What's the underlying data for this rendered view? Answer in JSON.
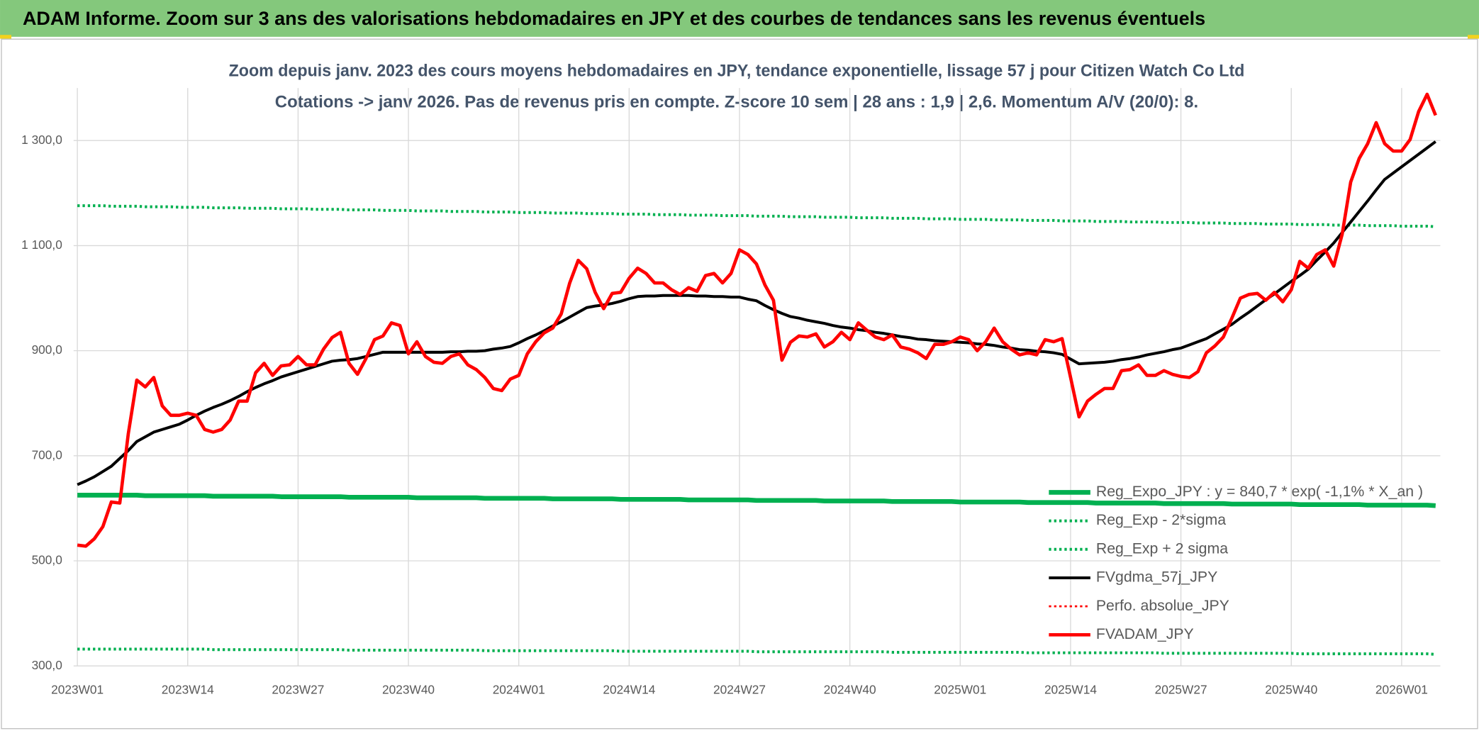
{
  "chart_data": {
    "type": "line",
    "title": "ADAM Informe. Zoom sur 3 ans des valorisations hebdomadaires en JPY et des courbes de tendances sans les revenus éventuels",
    "subtitle": [
      "Zoom depuis janv. 2023 des cours moyens hebdomadaires en JPY, tendance exponentielle, lissage 57 j pour Citizen Watch Co Ltd",
      "Cotations -> janv 2026. Pas de revenus pris en compte. Z-score 10 sem | 28 ans : 1,9 | 2,6. Momentum A/V (20/0): 8."
    ],
    "categories": [
      "2023W01",
      null,
      null,
      null,
      null,
      null,
      null,
      null,
      null,
      null,
      null,
      null,
      null,
      "2023W14",
      null,
      null,
      null,
      null,
      null,
      null,
      null,
      null,
      null,
      null,
      null,
      null,
      "2023W27",
      null,
      null,
      null,
      null,
      null,
      null,
      null,
      null,
      null,
      null,
      null,
      null,
      "2023W40",
      null,
      null,
      null,
      null,
      null,
      null,
      null,
      null,
      null,
      null,
      null,
      null,
      "2024W01",
      null,
      null,
      null,
      null,
      null,
      null,
      null,
      null,
      null,
      null,
      null,
      null,
      "2024W14",
      null,
      null,
      null,
      null,
      null,
      null,
      null,
      null,
      null,
      null,
      null,
      null,
      "2024W27",
      null,
      null,
      null,
      null,
      null,
      null,
      null,
      null,
      null,
      null,
      null,
      null,
      "2024W40",
      null,
      null,
      null,
      null,
      null,
      null,
      null,
      null,
      null,
      null,
      null,
      null,
      "2025W01",
      null,
      null,
      null,
      null,
      null,
      null,
      null,
      null,
      null,
      null,
      null,
      null,
      "2025W14",
      null,
      null,
      null,
      null,
      null,
      null,
      null,
      null,
      null,
      null,
      null,
      null,
      "2025W27",
      null,
      null,
      null,
      null,
      null,
      null,
      null,
      null,
      null,
      null,
      null,
      null,
      "2025W40",
      null,
      null,
      null,
      null,
      null,
      null,
      null,
      null,
      null,
      null,
      null,
      null,
      "2026W01",
      null,
      null,
      null,
      null
    ],
    "ylim": [
      300,
      1400
    ],
    "yticks": [
      {
        "value": 300,
        "label": "300,0"
      },
      {
        "value": 500,
        "label": "500,0"
      },
      {
        "value": 700,
        "label": "700,0"
      },
      {
        "value": 900,
        "label": "900,0"
      },
      {
        "value": 1100,
        "label": "1 100,0"
      },
      {
        "value": 1300,
        "label": "1 300,0"
      }
    ],
    "grid": true,
    "legend": "lower right",
    "series": [
      {
        "name": "Reg_Expo_JPY : y = 840,7 * exp( -1,1% * X_an )",
        "color": "#00b050",
        "style": "solid",
        "width": 5,
        "values": [
          625,
          625,
          625,
          625,
          625,
          625,
          625,
          625,
          624,
          624,
          624,
          624,
          624,
          624,
          624,
          624,
          623,
          623,
          623,
          623,
          623,
          623,
          623,
          623,
          622,
          622,
          622,
          622,
          622,
          622,
          622,
          622,
          621,
          621,
          621,
          621,
          621,
          621,
          621,
          621,
          620,
          620,
          620,
          620,
          620,
          620,
          620,
          620,
          619,
          619,
          619,
          619,
          619,
          619,
          619,
          619,
          618,
          618,
          618,
          618,
          618,
          618,
          618,
          618,
          617,
          617,
          617,
          617,
          617,
          617,
          617,
          617,
          616,
          616,
          616,
          616,
          616,
          616,
          616,
          616,
          615,
          615,
          615,
          615,
          615,
          615,
          615,
          615,
          614,
          614,
          614,
          614,
          614,
          614,
          614,
          614,
          613,
          613,
          613,
          613,
          613,
          613,
          613,
          613,
          612,
          612,
          612,
          612,
          612,
          612,
          612,
          612,
          611,
          611,
          611,
          611,
          611,
          611,
          611,
          611,
          610,
          610,
          610,
          610,
          610,
          610,
          610,
          610,
          609,
          609,
          609,
          609,
          609,
          609,
          609,
          609,
          608,
          608,
          608,
          608,
          608,
          608,
          608,
          608,
          607,
          607,
          607,
          607,
          607,
          607,
          607,
          607,
          606,
          606,
          606,
          606,
          606,
          606,
          606,
          606,
          605
        ]
      },
      {
        "name": "Reg_Exp - 2*sigma",
        "color": "#00b050",
        "style": "dotted",
        "width": 3,
        "values": [
          332,
          332,
          332,
          332,
          332,
          332,
          332,
          332,
          332,
          332,
          332,
          332,
          332,
          332,
          332,
          332,
          331,
          331,
          331,
          331,
          331,
          331,
          331,
          331,
          331,
          331,
          331,
          331,
          331,
          331,
          331,
          331,
          330,
          330,
          330,
          330,
          330,
          330,
          330,
          330,
          330,
          330,
          330,
          330,
          330,
          330,
          330,
          330,
          329,
          329,
          329,
          329,
          329,
          329,
          329,
          329,
          329,
          329,
          329,
          329,
          329,
          329,
          329,
          329,
          328,
          328,
          328,
          328,
          328,
          328,
          328,
          328,
          328,
          328,
          328,
          328,
          328,
          328,
          328,
          328,
          327,
          327,
          327,
          327,
          327,
          327,
          327,
          327,
          327,
          327,
          327,
          327,
          327,
          327,
          327,
          327,
          326,
          326,
          326,
          326,
          326,
          326,
          326,
          326,
          326,
          326,
          326,
          326,
          326,
          326,
          326,
          326,
          325,
          325,
          325,
          325,
          325,
          325,
          325,
          325,
          325,
          325,
          325,
          325,
          325,
          325,
          325,
          325,
          324,
          324,
          324,
          324,
          324,
          324,
          324,
          324,
          324,
          324,
          324,
          324,
          324,
          324,
          324,
          324,
          323,
          323,
          323,
          323,
          323,
          323,
          323,
          323,
          323,
          323,
          323,
          323,
          323,
          323,
          323,
          323,
          322
        ]
      },
      {
        "name": "Reg_Exp + 2 sigma",
        "color": "#00b050",
        "style": "dotted",
        "width": 3,
        "values": [
          1176,
          1176,
          1176,
          1176,
          1175,
          1175,
          1175,
          1175,
          1174,
          1174,
          1174,
          1174,
          1173,
          1173,
          1173,
          1173,
          1172,
          1172,
          1172,
          1172,
          1171,
          1171,
          1171,
          1171,
          1170,
          1170,
          1170,
          1170,
          1169,
          1169,
          1169,
          1169,
          1168,
          1168,
          1168,
          1168,
          1167,
          1167,
          1167,
          1167,
          1166,
          1166,
          1166,
          1166,
          1165,
          1165,
          1165,
          1165,
          1164,
          1164,
          1164,
          1164,
          1163,
          1163,
          1163,
          1163,
          1162,
          1162,
          1162,
          1162,
          1161,
          1161,
          1161,
          1161,
          1160,
          1160,
          1160,
          1160,
          1159,
          1159,
          1159,
          1159,
          1158,
          1158,
          1158,
          1158,
          1157,
          1157,
          1157,
          1157,
          1156,
          1156,
          1156,
          1156,
          1155,
          1155,
          1155,
          1155,
          1154,
          1154,
          1154,
          1154,
          1153,
          1153,
          1153,
          1153,
          1152,
          1152,
          1152,
          1152,
          1151,
          1151,
          1151,
          1151,
          1150,
          1150,
          1150,
          1150,
          1149,
          1149,
          1149,
          1149,
          1148,
          1148,
          1148,
          1148,
          1147,
          1147,
          1147,
          1147,
          1146,
          1146,
          1146,
          1146,
          1145,
          1145,
          1145,
          1145,
          1144,
          1144,
          1144,
          1144,
          1143,
          1143,
          1143,
          1143,
          1142,
          1142,
          1142,
          1142,
          1141,
          1141,
          1141,
          1141,
          1140,
          1140,
          1140,
          1140,
          1139,
          1139,
          1139,
          1139,
          1138,
          1138,
          1138,
          1138,
          1137,
          1137,
          1137,
          1137,
          1136
        ]
      },
      {
        "name": "FVgdma_57j_JPY",
        "color": "#000000",
        "style": "solid",
        "width": 3,
        "values": [
          645,
          652,
          660,
          670,
          680,
          695,
          710,
          727,
          736,
          745,
          750,
          755,
          760,
          768,
          777,
          785,
          792,
          798,
          805,
          813,
          822,
          830,
          837,
          843,
          850,
          855,
          860,
          865,
          870,
          875,
          880,
          882,
          883,
          885,
          889,
          893,
          897,
          897,
          897,
          897,
          897,
          897,
          897,
          897,
          898,
          898,
          899,
          899,
          900,
          903,
          905,
          908,
          915,
          923,
          930,
          938,
          947,
          955,
          964,
          973,
          982,
          985,
          987,
          990,
          994,
          999,
          1003,
          1004,
          1004,
          1005,
          1005,
          1005,
          1005,
          1004,
          1004,
          1003,
          1003,
          1002,
          1002,
          998,
          995,
          986,
          978,
          971,
          965,
          962,
          958,
          955,
          952,
          948,
          945,
          943,
          940,
          938,
          935,
          933,
          930,
          927,
          925,
          922,
          921,
          919,
          918,
          917,
          916,
          915,
          913,
          912,
          910,
          907,
          905,
          902,
          901,
          899,
          898,
          896,
          893,
          884,
          875,
          876,
          877,
          878,
          880,
          883,
          885,
          888,
          892,
          895,
          898,
          902,
          905,
          911,
          917,
          923,
          932,
          941,
          950,
          962,
          973,
          985,
          997,
          1008,
          1020,
          1032,
          1043,
          1055,
          1072,
          1088,
          1105,
          1125,
          1145,
          1165,
          1185,
          1206,
          1226,
          1238,
          1250,
          1262,
          1274,
          1286,
          1298
        ]
      },
      {
        "name": "Perfo. absolue_JPY",
        "color": "#ff0000",
        "style": "dotted",
        "width": 2
      },
      {
        "name": "FVADAM_JPY",
        "color": "#ff0000",
        "style": "solid",
        "width": 3.5,
        "values": [
          530,
          528,
          542,
          565,
          612,
          610,
          742,
          844,
          831,
          849,
          795,
          777,
          777,
          781,
          777,
          750,
          745,
          750,
          768,
          804,
          804,
          858,
          876,
          853,
          871,
          873,
          889,
          873,
          873,
          903,
          925,
          935,
          876,
          855,
          885,
          921,
          928,
          953,
          948,
          894,
          917,
          889,
          878,
          876,
          889,
          894,
          873,
          864,
          849,
          828,
          824,
          846,
          853,
          894,
          917,
          934,
          943,
          970,
          1029,
          1072,
          1056,
          1011,
          980,
          1009,
          1011,
          1038,
          1057,
          1047,
          1029,
          1029,
          1016,
          1007,
          1020,
          1013,
          1043,
          1047,
          1029,
          1047,
          1092,
          1083,
          1065,
          1025,
          996,
          882,
          916,
          928,
          926,
          932,
          907,
          917,
          935,
          921,
          953,
          939,
          926,
          921,
          930,
          907,
          903,
          896,
          885,
          912,
          912,
          917,
          926,
          921,
          900,
          917,
          943,
          917,
          903,
          892,
          896,
          892,
          921,
          917,
          923,
          849,
          774,
          804,
          817,
          828,
          828,
          862,
          864,
          873,
          853,
          853,
          862,
          855,
          851,
          849,
          860,
          896,
          909,
          926,
          962,
          1000,
          1007,
          1009,
          996,
          1011,
          993,
          1016,
          1070,
          1057,
          1083,
          1092,
          1061,
          1122,
          1221,
          1266,
          1294,
          1334,
          1294,
          1280,
          1280,
          1302,
          1355,
          1388,
          1348
        ]
      }
    ]
  }
}
